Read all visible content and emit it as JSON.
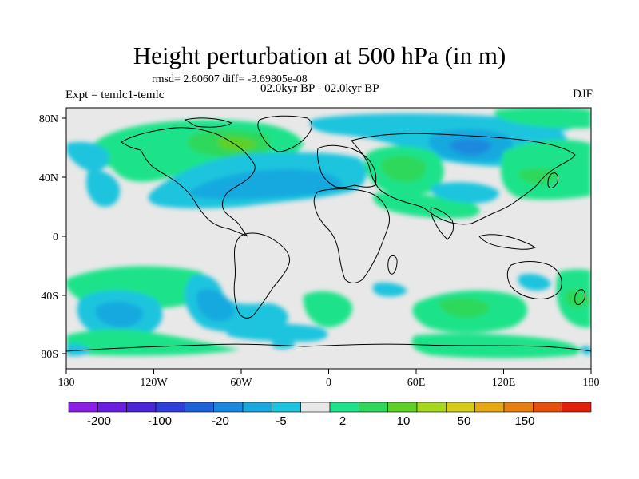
{
  "title": "Height perturbation at 500 hPa (in m)",
  "stats": "rmsd= 2.60607 diff= -3.69805e-08",
  "experiment": "Expt = temlc1-temlc",
  "period": "02.0kyr BP - 02.0kyr BP",
  "season": "DJF",
  "map": {
    "projection": "cylindrical equidistant",
    "lon_range": [
      -180,
      180
    ],
    "lat_range": [
      -90,
      90
    ],
    "lon_tick_labels": [
      "180",
      "120W",
      "60W",
      "0",
      "60E",
      "120E",
      "180"
    ],
    "lat_tick_labels": [
      "80N",
      "40N",
      "0",
      "40S",
      "80S"
    ],
    "background_color": "#e8e8e8",
    "coastline_color": "#000000"
  },
  "colorbar": {
    "labels": [
      "-200",
      "-100",
      "-20",
      "-5",
      "2",
      "10",
      "50",
      "150"
    ],
    "colors": [
      "#8c1ee6",
      "#6a1fe0",
      "#4a26d8",
      "#2f3fd8",
      "#1f63da",
      "#1a88de",
      "#19a9df",
      "#1cc4de",
      "#e8e8e8",
      "#1ee38a",
      "#2fd85a",
      "#5fd028",
      "#a6d81e",
      "#d6cc17",
      "#e6a812",
      "#e57f10",
      "#e5500e",
      "#e41f0c"
    ]
  }
}
